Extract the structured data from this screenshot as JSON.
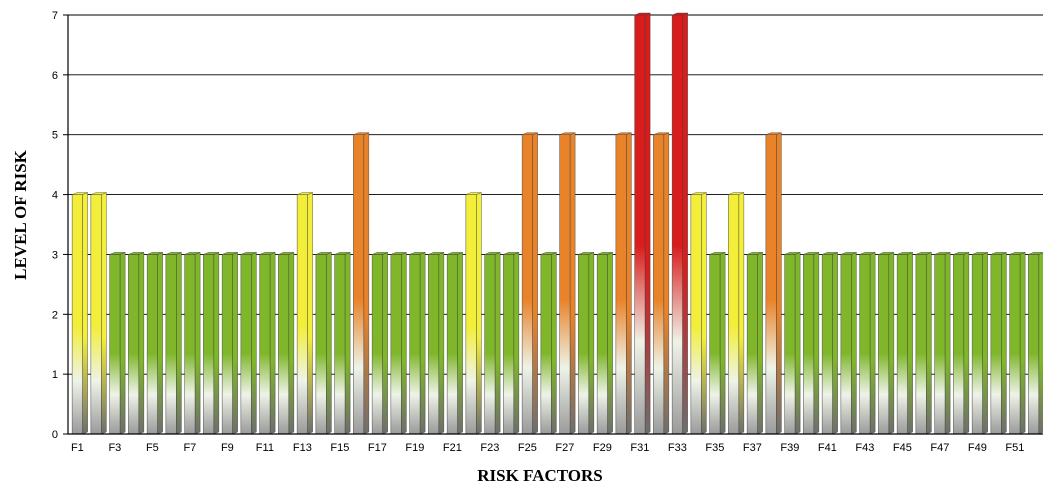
{
  "chart_data": {
    "type": "bar",
    "title": "",
    "xlabel": "RISK FACTORS",
    "ylabel": "LEVEL  OF RISK",
    "ylim": [
      0,
      7
    ],
    "yticks": [
      "0",
      "1",
      "2",
      "3",
      "4",
      "5",
      "6",
      "7"
    ],
    "grid": true,
    "categories": [
      "F1",
      "F2",
      "F3",
      "F4",
      "F5",
      "F6",
      "F7",
      "F8",
      "F9",
      "F10",
      "F11",
      "F12",
      "F13",
      "F14",
      "F15",
      "F16",
      "F17",
      "F18",
      "F19",
      "F20",
      "F21",
      "F22",
      "F23",
      "F24",
      "F25",
      "F26",
      "F27",
      "F28",
      "F29",
      "F30",
      "F31",
      "F32",
      "F33",
      "F34",
      "F35",
      "F36",
      "F37",
      "F38",
      "F39",
      "F40",
      "F41",
      "F42",
      "F43",
      "F44",
      "F45",
      "F46",
      "F47",
      "F48",
      "F49",
      "F50",
      "F51",
      "F52"
    ],
    "visible_tick_labels": [
      "F1",
      "F3",
      "F5",
      "F7",
      "F9",
      "F11",
      "F13",
      "F15",
      "F17",
      "F19",
      "F21",
      "F23",
      "F25",
      "F27",
      "F29",
      "F31",
      "F33",
      "F35",
      "F37",
      "F39",
      "F41",
      "F43",
      "F45",
      "F47",
      "F49",
      "F51"
    ],
    "values": [
      4,
      4,
      3,
      3,
      3,
      3,
      3,
      3,
      3,
      3,
      3,
      3,
      4,
      3,
      3,
      5,
      3,
      3,
      3,
      3,
      3,
      4,
      3,
      3,
      5,
      3,
      5,
      3,
      3,
      5,
      7,
      5,
      7,
      4,
      3,
      4,
      3,
      5,
      3,
      3,
      3,
      3,
      3,
      3,
      3,
      3,
      3,
      3,
      3,
      3,
      3,
      3
    ],
    "colors": {
      "3": "#7fb62a",
      "4": "#f2ee3a",
      "5": "#e8832a",
      "7": "#d91c1c",
      "base": "#9a9a9a"
    }
  }
}
